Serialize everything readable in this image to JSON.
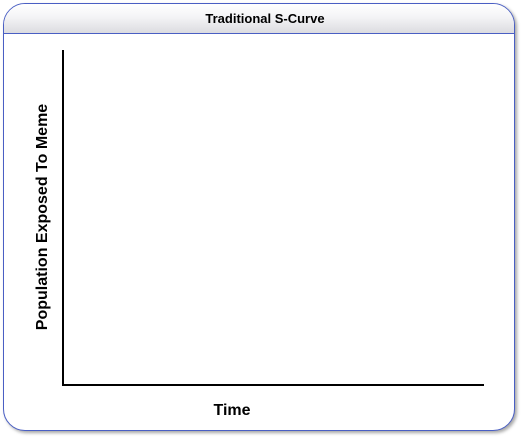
{
  "chart_data": {
    "type": "line",
    "title": "Traditional S-Curve",
    "xlabel": "Time",
    "ylabel": "Population Exposed To Meme",
    "series": [],
    "grid": false,
    "legend": "none"
  },
  "colors": {
    "frame_border": "#4a5fc4",
    "axis": "#000000"
  }
}
